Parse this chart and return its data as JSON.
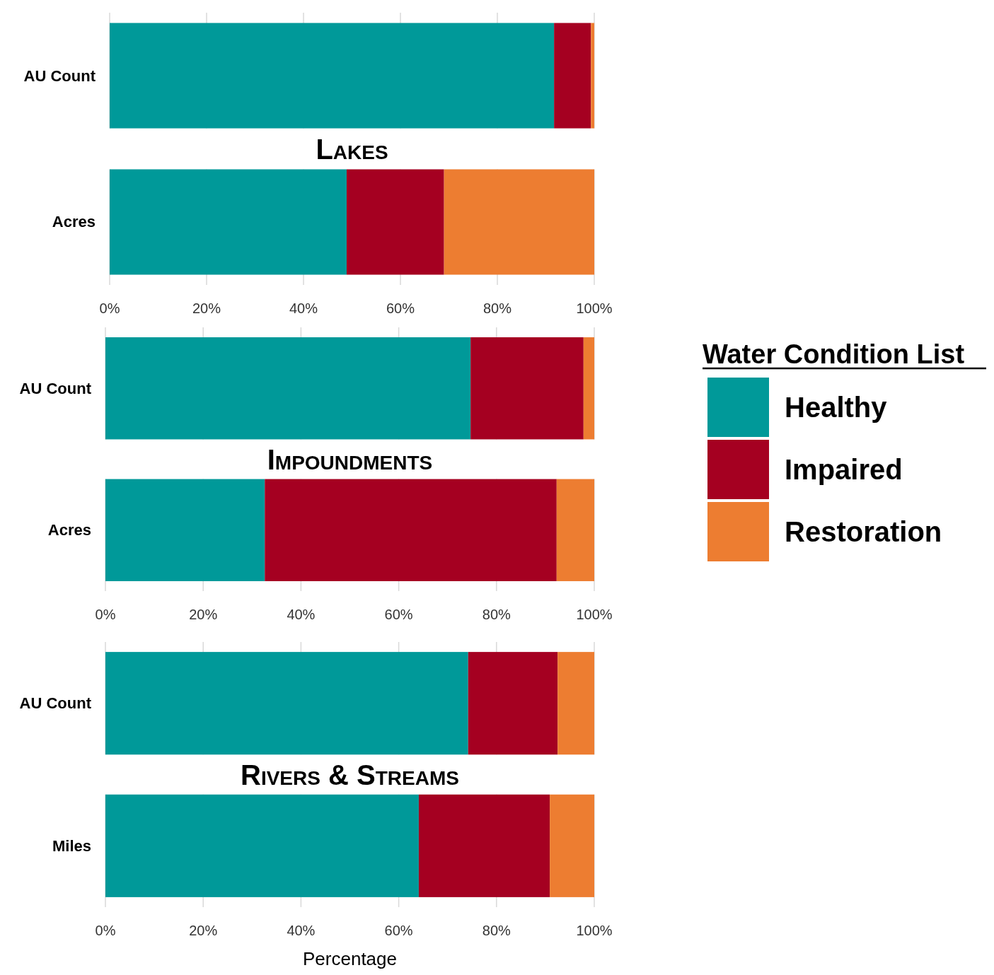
{
  "chart_data": [
    {
      "type": "bar",
      "title": "Lakes",
      "orientation": "horizontal",
      "stacked": true,
      "categories": [
        "AU Count",
        "Acres"
      ],
      "series": [
        {
          "color": "#009999",
          "values": [
            91.7,
            48.9
          ]
        },
        {
          "color": "#a50021",
          "values": [
            7.6,
            20.1
          ]
        },
        {
          "color": "#ed7d31",
          "values": [
            0.7,
            31.0
          ]
        }
      ],
      "xlim": [
        0,
        100
      ],
      "xticks": [
        {
          "value": 0,
          "label": "0%"
        },
        {
          "value": 20,
          "label": "20%"
        },
        {
          "value": 40,
          "label": "40%"
        },
        {
          "value": 60,
          "label": "60%"
        },
        {
          "value": 80,
          "label": "80%"
        },
        {
          "value": 100,
          "label": "100%"
        }
      ],
      "grid": "x"
    },
    {
      "type": "bar",
      "title": "Impoundments",
      "orientation": "horizontal",
      "stacked": true,
      "categories": [
        "AU Count",
        "Acres"
      ],
      "series": [
        {
          "name": "Healthy",
          "color": "#009999",
          "values": [
            74.7,
            32.6
          ]
        },
        {
          "name": "Impaired",
          "color": "#a50021",
          "values": [
            23.1,
            59.7
          ]
        },
        {
          "name": "Restoration",
          "color": "#ed7d31",
          "values": [
            2.2,
            7.7
          ]
        }
      ],
      "xlim": [
        0,
        100
      ],
      "xticks": [
        {
          "value": 0,
          "label": "0%"
        },
        {
          "value": 20,
          "label": "20%"
        },
        {
          "value": 40,
          "label": "40%"
        },
        {
          "value": 60,
          "label": "60%"
        },
        {
          "value": 80,
          "label": "80%"
        },
        {
          "value": 100,
          "label": "100%"
        }
      ],
      "grid": "x",
      "legend": "right",
      "legend_title": "Water Condition List"
    },
    {
      "type": "bar",
      "title": "Rivers & Streams",
      "orientation": "horizontal",
      "stacked": true,
      "categories": [
        "AU Count",
        "Miles"
      ],
      "series": [
        {
          "color": "#009999",
          "values": [
            74.2,
            64.1
          ]
        },
        {
          "color": "#a50021",
          "values": [
            18.3,
            26.8
          ]
        },
        {
          "color": "#ed7d31",
          "values": [
            7.5,
            9.1
          ]
        }
      ],
      "xlim": [
        0,
        100
      ],
      "xticks": [
        {
          "value": 0,
          "label": "0%"
        },
        {
          "value": 20,
          "label": "20%"
        },
        {
          "value": 40,
          "label": "40%"
        },
        {
          "value": 60,
          "label": "60%"
        },
        {
          "value": 80,
          "label": "80%"
        },
        {
          "value": 100,
          "label": "100%"
        }
      ],
      "grid": "x",
      "xlabel": "Percentage"
    }
  ]
}
